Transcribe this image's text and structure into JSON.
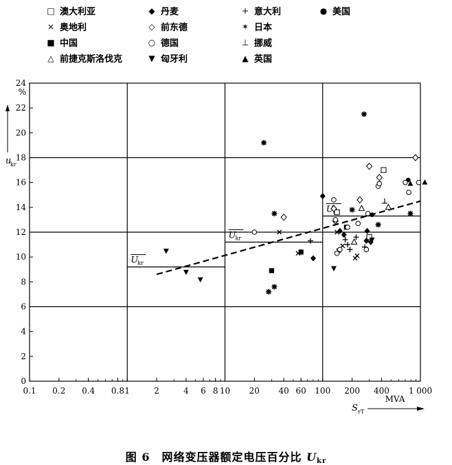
{
  "legend": [
    {
      "symbol": "□",
      "label": "澳大利亚"
    },
    {
      "symbol": "◆",
      "label": "丹麦"
    },
    {
      "symbol": "+",
      "label": "意大利"
    },
    {
      "symbol": "●",
      "label": "美国"
    },
    {
      "symbol": "×",
      "label": "奥地利"
    },
    {
      "symbol": "◇",
      "label": "前东德"
    },
    {
      "symbol": "✶",
      "label": "日本"
    },
    {
      "symbol": "■",
      "label": "中国"
    },
    {
      "symbol": "○",
      "label": "德国"
    },
    {
      "symbol": "⊥",
      "label": "挪威"
    },
    {
      "symbol": "△",
      "label": "前捷克斯洛伐克"
    },
    {
      "symbol": "▼",
      "label": "匈牙利"
    },
    {
      "symbol": "▲",
      "label": "英国"
    }
  ],
  "caption": {
    "prefix": "图 6　网络变压器额定电压百分比 ",
    "var": "U",
    "sub": "kr"
  },
  "chart_data": {
    "type": "scatter",
    "title": "",
    "xlabel": "S_rT MVA",
    "ylabel": "u_kr %",
    "x_scale": "log",
    "xlim": [
      0.1,
      1000
    ],
    "ylim": [
      0,
      24
    ],
    "x_tick_labels": [
      "0.1",
      "0.2",
      "0.4",
      "0.8",
      "1",
      "2",
      "4",
      "6",
      "8",
      "10",
      "20",
      "40",
      "60",
      "100",
      "200",
      "400",
      "1 000"
    ],
    "x_tick_values": [
      0.1,
      0.2,
      0.4,
      0.8,
      1,
      2,
      4,
      6,
      8,
      10,
      20,
      40,
      60,
      100,
      200,
      400,
      1000
    ],
    "y_ticks": [
      0,
      2,
      4,
      6,
      8,
      10,
      12,
      14,
      16,
      18,
      20,
      22,
      24
    ],
    "y_unit": "%",
    "x_unit": "MVA",
    "grid_y": [
      6,
      12,
      18
    ],
    "grid_x": [
      1,
      10,
      100
    ],
    "mean_label": "U_kr",
    "mean_lines": [
      {
        "x": [
          1,
          10
        ],
        "y": 9.2
      },
      {
        "x": [
          10,
          100
        ],
        "y": 11.2
      },
      {
        "x": [
          100,
          1000
        ],
        "y": 13.3
      }
    ],
    "trend_line": {
      "x": [
        2,
        1000
      ],
      "y": [
        8.6,
        14.5
      ]
    },
    "series": [
      {
        "name": "澳大利亚",
        "marker": "square-open",
        "points": [
          [
            140,
            13.6
          ],
          [
            420,
            17.0
          ],
          [
            300,
            11.6
          ]
        ]
      },
      {
        "name": "丹麦",
        "marker": "diamond-filled",
        "points": [
          [
            80,
            9.9
          ],
          [
            100,
            14.9
          ],
          [
            150,
            12.1
          ],
          [
            165,
            11.8
          ],
          [
            280,
            11.3
          ],
          [
            310,
            11.2
          ],
          [
            285,
            12.1
          ]
        ]
      },
      {
        "name": "意大利",
        "marker": "plus",
        "points": [
          [
            75,
            11.3
          ],
          [
            180,
            11.0
          ],
          [
            190,
            10.6
          ],
          [
            220,
            11.6
          ],
          [
            270,
            10.8
          ],
          [
            170,
            11.4
          ]
        ]
      },
      {
        "name": "美国",
        "marker": "circle-filled",
        "points": [
          [
            320,
            13.4
          ],
          [
            750,
            16.2
          ]
        ]
      },
      {
        "name": "奥地利",
        "marker": "x",
        "points": [
          [
            36,
            12.0
          ],
          [
            56,
            10.3
          ],
          [
            140,
            12.0
          ],
          [
            145,
            10.5
          ],
          [
            160,
            10.9
          ],
          [
            215,
            9.9
          ],
          [
            225,
            10.1
          ]
        ]
      },
      {
        "name": "前东德",
        "marker": "diamond-open",
        "points": [
          [
            40,
            13.2
          ],
          [
            130,
            13.9
          ],
          [
            135,
            12.9
          ],
          [
            240,
            14.6
          ],
          [
            300,
            17.3
          ],
          [
            380,
            16.4
          ],
          [
            890,
            18.0
          ]
        ]
      },
      {
        "name": "日本",
        "marker": "star",
        "points": [
          [
            25,
            19.2
          ],
          [
            265,
            21.5
          ],
          [
            28,
            7.2
          ],
          [
            32,
            7.6
          ],
          [
            32,
            13.5
          ],
          [
            200,
            13.8
          ],
          [
            370,
            12.6
          ],
          [
            790,
            13.5
          ]
        ]
      },
      {
        "name": "中国",
        "marker": "square-filled",
        "points": [
          [
            30,
            8.9
          ],
          [
            60,
            10.4
          ],
          [
            175,
            12.4
          ]
        ]
      },
      {
        "name": "德国",
        "marker": "circle-open",
        "points": [
          [
            20,
            12.0
          ],
          [
            130,
            14.6
          ],
          [
            135,
            13.0
          ],
          [
            140,
            10.3
          ],
          [
            150,
            10.6
          ],
          [
            180,
            12.4
          ],
          [
            230,
            12.7
          ],
          [
            280,
            10.6
          ],
          [
            290,
            13.5
          ],
          [
            370,
            15.7
          ],
          [
            380,
            15.9
          ],
          [
            700,
            16.0
          ],
          [
            760,
            15.2
          ],
          [
            960,
            16.0
          ]
        ]
      },
      {
        "name": "挪威",
        "marker": "t-perp",
        "points": [
          [
            430,
            14.5
          ]
        ]
      },
      {
        "name": "前捷克斯洛伐克",
        "marker": "triangle-open",
        "points": [
          [
            210,
            11.2
          ],
          [
            250,
            13.9
          ],
          [
            470,
            14.0
          ]
        ]
      },
      {
        "name": "匈牙利",
        "marker": "tri-down-filled",
        "points": [
          [
            2.5,
            10.5
          ],
          [
            4,
            8.8
          ],
          [
            5.6,
            8.2
          ],
          [
            130,
            9.1
          ],
          [
            320,
            11.4
          ]
        ]
      },
      {
        "name": "英国",
        "marker": "tri-up-filled",
        "points": [
          [
            790,
            15.9
          ],
          [
            1110,
            16.0
          ]
        ]
      }
    ]
  }
}
